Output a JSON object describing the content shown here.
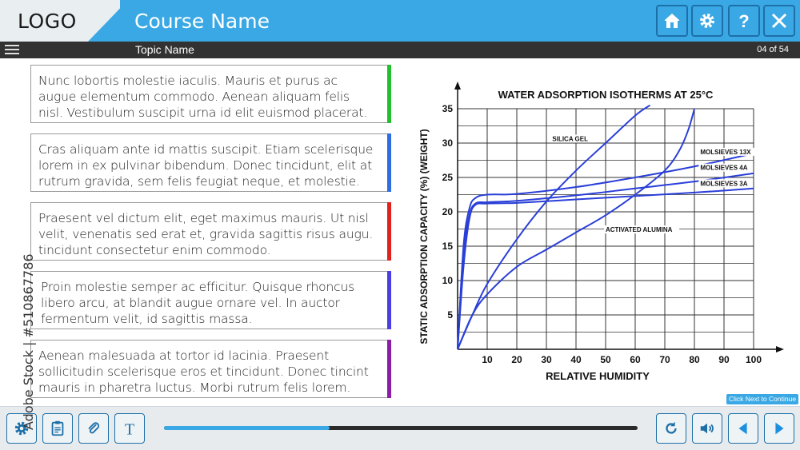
{
  "header": {
    "logo": "LOGO",
    "course_name": "Course Name"
  },
  "subheader": {
    "topic_name": "Topic Name",
    "page_count": "04 of 54"
  },
  "content": {
    "boxes": [
      {
        "text": "Nunc lobortis molestie iaculis. Mauris et purus ac\naugue elementum commodo. Aenean aliquam felis\nnisl. Vestibulum suscipit urna id elit euismod placerat.",
        "color": "#22c02e"
      },
      {
        "text": "Cras aliquam ante id mattis suscipit. Etiam scelerisque\nlorem in ex pulvinar bibendum. Donec tincidunt, elit at\nrutrum gravida, sem felis feugiat neque, et molestie.",
        "color": "#2f6ee0"
      },
      {
        "text": "Praesent vel dictum elit, eget maximus mauris. Ut nisl\nvelit, venenatis sed erat et, gravida sagittis risus augu.\ntincidunt consectetur enim commodo.",
        "color": "#e0221f"
      },
      {
        "text": "Proin molestie semper  ac efficitur. Quisque rhoncus\nlibero arcu, at blandit augue ornare vel. In auctor\nfermentum velit, id sagittis massa.",
        "color": "#4b3fe0"
      },
      {
        "text": "Aenean malesuada at tortor id lacinia. Praesent\nsollicitudin scelerisque eros et tincidunt. Donec tincint\nmauris in pharetra luctus. Morbi rutrum felis lorem.",
        "color": "#8a1ea8"
      }
    ]
  },
  "chart_data": {
    "type": "line",
    "title": "WATER ADSORPTION ISOTHERMS AT 25°C",
    "xlabel": "RELATIVE HUMIDITY",
    "ylabel": "STATIC ADSORPTION CAPACITY (%) (WEIGHT)",
    "xlim": [
      0,
      100
    ],
    "ylim": [
      0,
      35
    ],
    "xticks": [
      "10",
      "20",
      "30",
      "40",
      "50",
      "60",
      "70",
      "80",
      "90",
      "100"
    ],
    "yticks": [
      "5",
      "10",
      "15",
      "20",
      "25",
      "30",
      "35"
    ],
    "grid": true,
    "line_color": "#2a3fd8",
    "series": [
      {
        "name": "SILICA GEL",
        "x": [
          0,
          5,
          10,
          20,
          30,
          40,
          50,
          60,
          65
        ],
        "y": [
          0,
          5,
          9.5,
          16,
          21.5,
          26,
          30,
          34,
          35.5
        ]
      },
      {
        "name": "MOLSIEVES 13X",
        "x": [
          0,
          2,
          4,
          6,
          10,
          20,
          40,
          60,
          80,
          100
        ],
        "y": [
          0,
          15,
          20.5,
          22,
          22.5,
          22.6,
          23.6,
          25,
          26.6,
          28.5
        ]
      },
      {
        "name": "MOLSIEVES 4A",
        "x": [
          0,
          2,
          4,
          6,
          10,
          20,
          40,
          60,
          80,
          100
        ],
        "y": [
          0,
          14,
          19.5,
          21.2,
          21.4,
          21.6,
          22.4,
          23.4,
          24.4,
          25.6
        ]
      },
      {
        "name": "MOLSIEVES 3A",
        "x": [
          0,
          2,
          4,
          6,
          10,
          20,
          40,
          60,
          80,
          100
        ],
        "y": [
          0,
          12,
          19,
          21,
          21.2,
          21.3,
          21.8,
          22.3,
          22.8,
          23.4
        ]
      },
      {
        "name": "ACTIVATED ALUMINA",
        "x": [
          0,
          5,
          10,
          20,
          30,
          40,
          50,
          60,
          70,
          75,
          78,
          80
        ],
        "y": [
          0,
          5,
          8,
          12,
          14.5,
          17,
          19.5,
          22.5,
          26,
          29,
          32,
          35
        ]
      }
    ]
  },
  "footer": {
    "progress": 0.35,
    "next_tip": "Click Next to Continue"
  },
  "watermark": {
    "side_text": "Adobe Stock | #510867786"
  },
  "icons": {
    "home": "home-icon",
    "settings": "gear-icon",
    "help": "question-icon",
    "close": "close-icon",
    "menu": "hamburger-menu-icon",
    "notes": "clipboard-icon",
    "attachment": "paperclip-icon",
    "text": "text-icon",
    "replay": "replay-icon",
    "audio": "speaker-icon",
    "prev": "prev-arrow-icon",
    "next": "next-arrow-icon"
  }
}
